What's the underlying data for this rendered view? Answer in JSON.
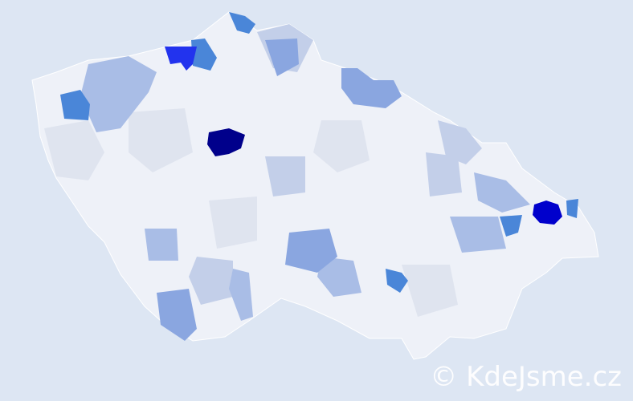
{
  "map": {
    "type": "choropleth",
    "colors": {
      "background": "#dde6f3",
      "base": "#eef1f8",
      "very_light": "#dfe4ef",
      "light": "#c3cfe9",
      "medium_light": "#a9bde6",
      "medium": "#8aa6e0",
      "strong": "#4a86d8",
      "bright": "#2233ee",
      "high": "#0000cc",
      "max": "#00008b"
    }
  },
  "watermark": "© KdeJsme.cz"
}
